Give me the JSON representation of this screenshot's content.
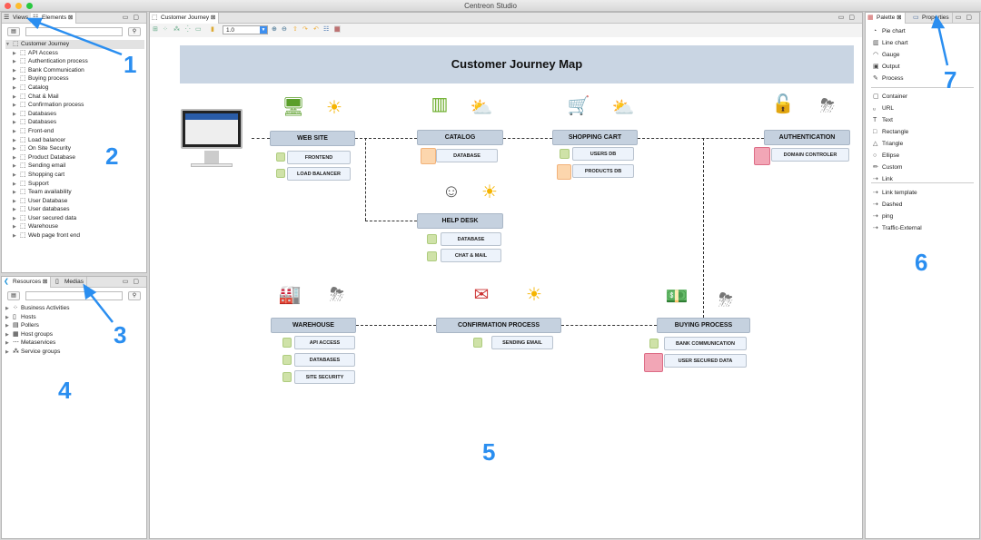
{
  "app": {
    "title": "Centreon Studio"
  },
  "left_top": {
    "tabs": [
      {
        "label": "Views",
        "icon": "list-icon"
      },
      {
        "label": "Elements",
        "icon": "elements-icon"
      }
    ],
    "tree_root": "Customer Journey",
    "items": [
      "API Access",
      "Authentication process",
      "Bank Communication",
      "Buying process",
      "Catalog",
      "Chat & Mail",
      "Confirmation process",
      "Databases",
      "Databases",
      "Front-end",
      "Load balancer",
      "On Site Security",
      "Product Database",
      "Sending email",
      "Shopping cart",
      "Support",
      "Team availability",
      "User Database",
      "User databases",
      "User secured data",
      "Warehouse",
      "Web page front end"
    ]
  },
  "left_bottom": {
    "tabs": [
      {
        "label": "Resources",
        "icon": "centreon-icon"
      },
      {
        "label": "Medias",
        "icon": "media-icon"
      }
    ],
    "items": [
      "Business Activities",
      "Hosts",
      "Pollers",
      "Host groups",
      "Metaservices",
      "Service groups"
    ]
  },
  "editor": {
    "tab": "Customer Journey",
    "zoom": "1.0"
  },
  "diagram": {
    "title": "Customer Journey Map",
    "nodes": {
      "web_site": "WEB SITE",
      "catalog": "CATALOG",
      "shopping_cart": "SHOPPING CART",
      "authentication": "AUTHENTICATION",
      "help_desk": "HELP DESK",
      "warehouse": "WAREHOUSE",
      "confirmation": "CONFIRMATION PROCESS",
      "buying": "BUYING PROCESS"
    },
    "subs": {
      "frontend": "FRONTEND",
      "load_balancer": "LOAD BALANCER",
      "catalog_db": "DATABASE",
      "users_db": "USERS DB",
      "products_db": "PRODUCTS DB",
      "domain_controler": "DOMAIN CONTROLER",
      "helpdesk_db": "DATABASE",
      "chat_mail": "CHAT & MAIL",
      "api_access": "API ACCESS",
      "databases": "DATABASES",
      "site_security": "SITE SECURITY",
      "sending_email": "SENDING EMAIL",
      "bank_communication": "BANK COMMUNICATION",
      "user_secured_data": "USER SECURED DATA"
    },
    "status_colors": {
      "ok": "#cfe2a8",
      "warning": "#fcd6ad",
      "critical": "#f2a6b6"
    }
  },
  "right": {
    "tabs": [
      {
        "label": "Palette",
        "icon": "palette-icon"
      },
      {
        "label": "Properties",
        "icon": "properties-icon"
      }
    ],
    "group1": [
      {
        "label": "Pie chart",
        "icon": "◔"
      },
      {
        "label": "Line chart",
        "icon": "▥"
      },
      {
        "label": "Gauge",
        "icon": "◠"
      },
      {
        "label": "Output",
        "icon": "▣"
      },
      {
        "label": "Process",
        "icon": "✎"
      }
    ],
    "group2": [
      {
        "label": "Container",
        "icon": "▢"
      },
      {
        "label": "URL",
        "icon": "ᵤ"
      },
      {
        "label": "Text",
        "icon": "T"
      },
      {
        "label": "Rectangle",
        "icon": "□"
      },
      {
        "label": "Triangle",
        "icon": "△"
      },
      {
        "label": "Ellipse",
        "icon": "○"
      },
      {
        "label": "Custom",
        "icon": "✏"
      },
      {
        "label": "Link",
        "icon": "⇢"
      }
    ],
    "group3": [
      {
        "label": "Link template",
        "icon": "⇢"
      },
      {
        "label": "Dashed",
        "icon": "⇢"
      },
      {
        "label": "ping",
        "icon": "⇢"
      },
      {
        "label": "Traffic-External",
        "icon": "⇢"
      }
    ]
  },
  "annotations": [
    "1",
    "2",
    "3",
    "4",
    "5",
    "6",
    "7"
  ]
}
